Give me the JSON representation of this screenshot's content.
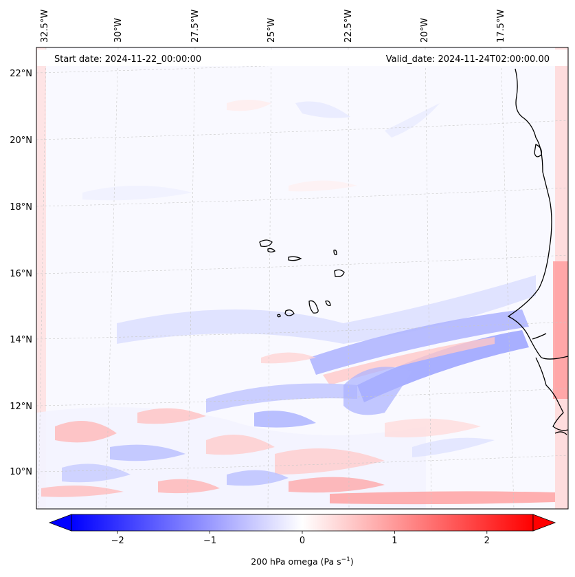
{
  "header": {
    "start_date": "Start date: 2024-11-22_00:00:00",
    "valid_date": "Valid_date: 2024-11-24T02:00:00.00"
  },
  "map": {
    "projection": "lambert-conformal",
    "gridlines": "dashed light grey",
    "lon_labels": [
      "32.5°W",
      "30°W",
      "27.5°W",
      "25°W",
      "22.5°W",
      "20°W",
      "17.5°W"
    ],
    "lat_labels": [
      "22°N",
      "20°N",
      "18°N",
      "16°N",
      "14°N",
      "12°N",
      "10°N"
    ]
  },
  "colorbar": {
    "label": "200 hPa omega (Pa s",
    "label_superscript": "−1",
    "label_close": ")",
    "ticks": [
      "−2",
      "−1",
      "0",
      "1",
      "2"
    ],
    "tick_values": [
      -2,
      -1,
      0,
      1,
      2
    ],
    "range": [
      -2.5,
      2.5
    ],
    "low_color": "#0000ff",
    "mid_color": "#ffffff",
    "high_color": "#ff0000",
    "extend": "both"
  }
}
